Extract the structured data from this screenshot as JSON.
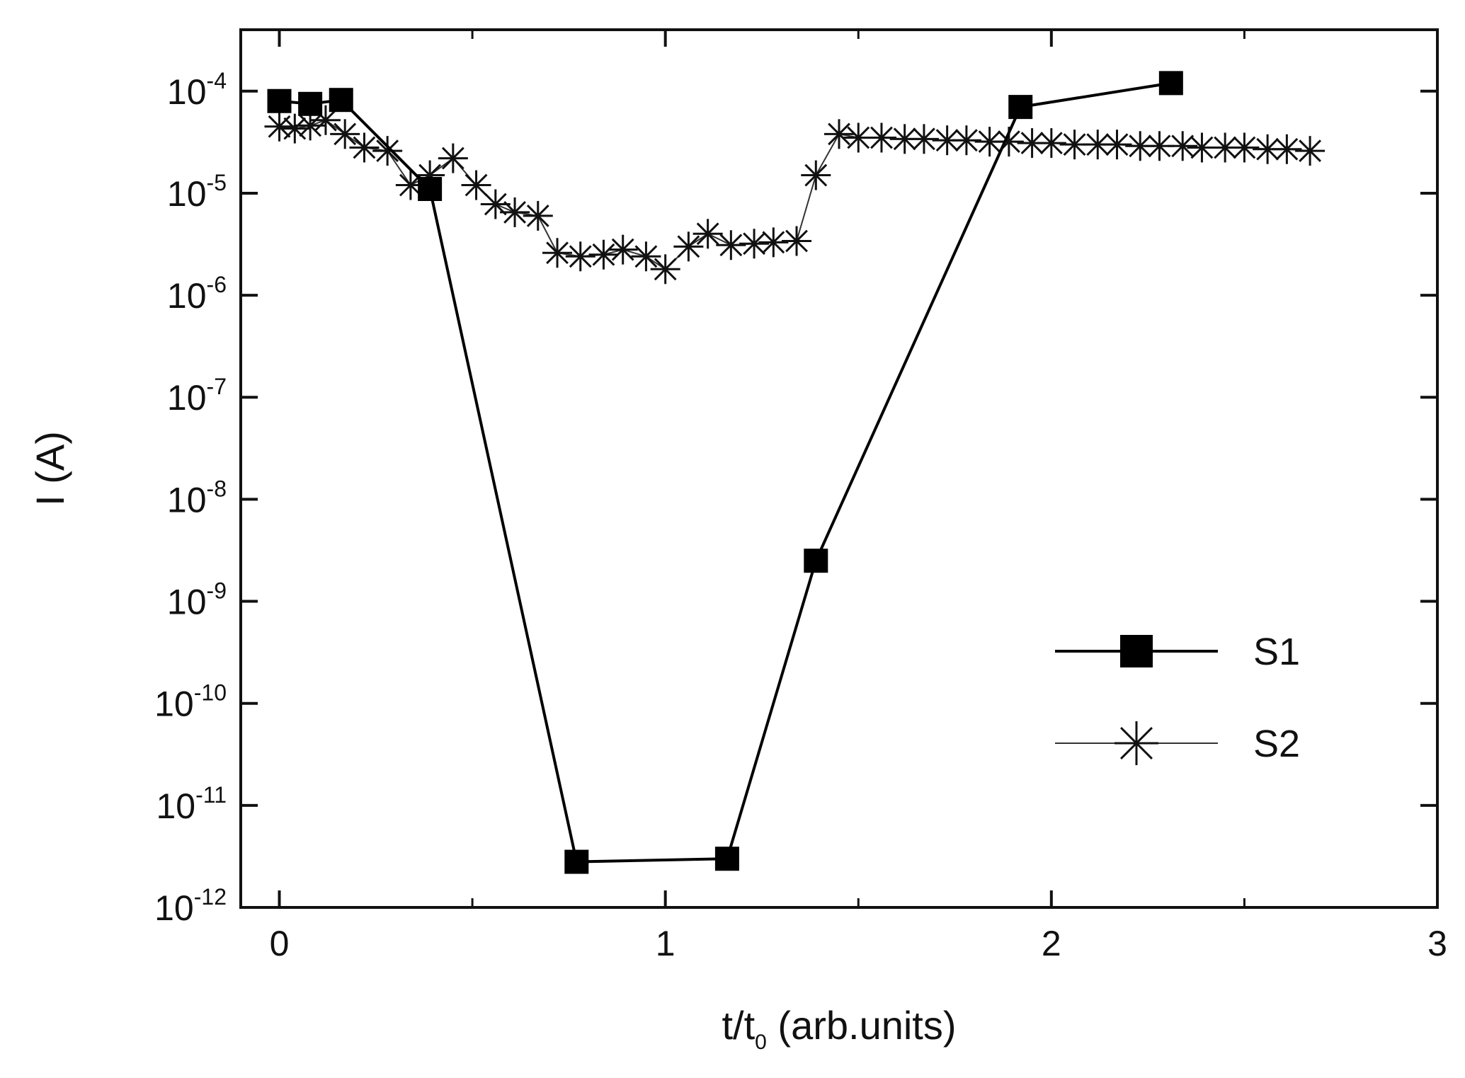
{
  "chart_data": {
    "type": "line",
    "title": "",
    "xlabel": {
      "main": "t/t",
      "subscript": "0",
      "rest": " (arb.units)"
    },
    "ylabel": "I (A)",
    "xlim": [
      -0.1,
      3.0
    ],
    "ylim": [
      1e-12,
      0.0004
    ],
    "yscale": "log",
    "x_ticks": [
      {
        "value": 0,
        "label": "0"
      },
      {
        "value": 1,
        "label": "1"
      },
      {
        "value": 2,
        "label": "2"
      },
      {
        "value": 3,
        "label": "3"
      }
    ],
    "y_ticks": [
      {
        "exp": -4,
        "base": "10",
        "sup": "-4"
      },
      {
        "exp": -5,
        "base": "10",
        "sup": "-5"
      },
      {
        "exp": -6,
        "base": "10",
        "sup": "-6"
      },
      {
        "exp": -7,
        "base": "10",
        "sup": "-7"
      },
      {
        "exp": -8,
        "base": "10",
        "sup": "-8"
      },
      {
        "exp": -9,
        "base": "10",
        "sup": "-9"
      },
      {
        "exp": -10,
        "base": "10",
        "sup": "-10"
      },
      {
        "exp": -11,
        "base": "10",
        "sup": "-11"
      },
      {
        "exp": -12,
        "base": "10",
        "sup": "-12"
      }
    ],
    "grid": false,
    "legend_position": "right",
    "series": [
      {
        "name": "S1",
        "marker": "square",
        "x": [
          0.0,
          0.08,
          0.16,
          0.39,
          0.77,
          1.16,
          1.39,
          1.92,
          2.31
        ],
        "y": [
          8e-05,
          7.5e-05,
          8.2e-05,
          1.1e-05,
          2.8e-12,
          3e-12,
          2.5e-09,
          7e-05,
          0.00012
        ]
      },
      {
        "name": "S2",
        "marker": "asterisk",
        "x": [
          0.0,
          0.04,
          0.08,
          0.12,
          0.17,
          0.22,
          0.28,
          0.34,
          0.39,
          0.45,
          0.51,
          0.56,
          0.61,
          0.67,
          0.72,
          0.78,
          0.84,
          0.89,
          0.95,
          1.0,
          1.06,
          1.11,
          1.17,
          1.23,
          1.28,
          1.34,
          1.39,
          1.45,
          1.5,
          1.56,
          1.62,
          1.67,
          1.73,
          1.78,
          1.84,
          1.89,
          1.95,
          2.0,
          2.06,
          2.12,
          2.17,
          2.23,
          2.28,
          2.34,
          2.39,
          2.45,
          2.5,
          2.56,
          2.61,
          2.67
        ],
        "y": [
          4.5e-05,
          4.3e-05,
          4.6e-05,
          5.2e-05,
          3.8e-05,
          2.8e-05,
          2.6e-05,
          1.2e-05,
          1.5e-05,
          2.2e-05,
          1.2e-05,
          7.8e-06,
          6.5e-06,
          6e-06,
          2.6e-06,
          2.4e-06,
          2.5e-06,
          2.8e-06,
          2.4e-06,
          1.8e-06,
          3e-06,
          4e-06,
          3.1e-06,
          3.2e-06,
          3.3e-06,
          3.4e-06,
          1.5e-05,
          3.8e-05,
          3.5e-05,
          3.5e-05,
          3.4e-05,
          3.4e-05,
          3.3e-05,
          3.3e-05,
          3.2e-05,
          3.2e-05,
          3.1e-05,
          3.1e-05,
          3e-05,
          3e-05,
          3e-05,
          2.9e-05,
          2.9e-05,
          2.9e-05,
          2.8e-05,
          2.8e-05,
          2.8e-05,
          2.7e-05,
          2.7e-05,
          2.6e-05
        ]
      }
    ]
  }
}
